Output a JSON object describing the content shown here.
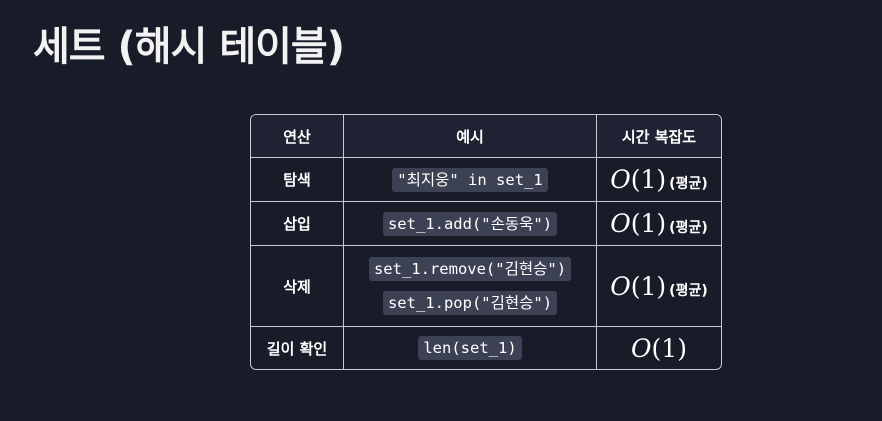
{
  "title": "세트 (해시 테이블)",
  "table": {
    "headers": [
      "연산",
      "예시",
      "시간 복잡도"
    ],
    "rows": [
      {
        "op": "탐색",
        "examples": [
          "\"최지웅\" in set_1"
        ],
        "complexity": "O(1)",
        "note": "(평균)"
      },
      {
        "op": "삽입",
        "examples": [
          "set_1.add(\"손동욱\")"
        ],
        "complexity": "O(1)",
        "note": "(평균)"
      },
      {
        "op": "삭제",
        "examples": [
          "set_1.remove(\"김현승\")",
          "set_1.pop(\"김현승\")"
        ],
        "complexity": "O(1)",
        "note": "(평균)"
      },
      {
        "op": "길이 확인",
        "examples": [
          "len(set_1)"
        ],
        "complexity": "O(1)",
        "note": ""
      }
    ]
  }
}
